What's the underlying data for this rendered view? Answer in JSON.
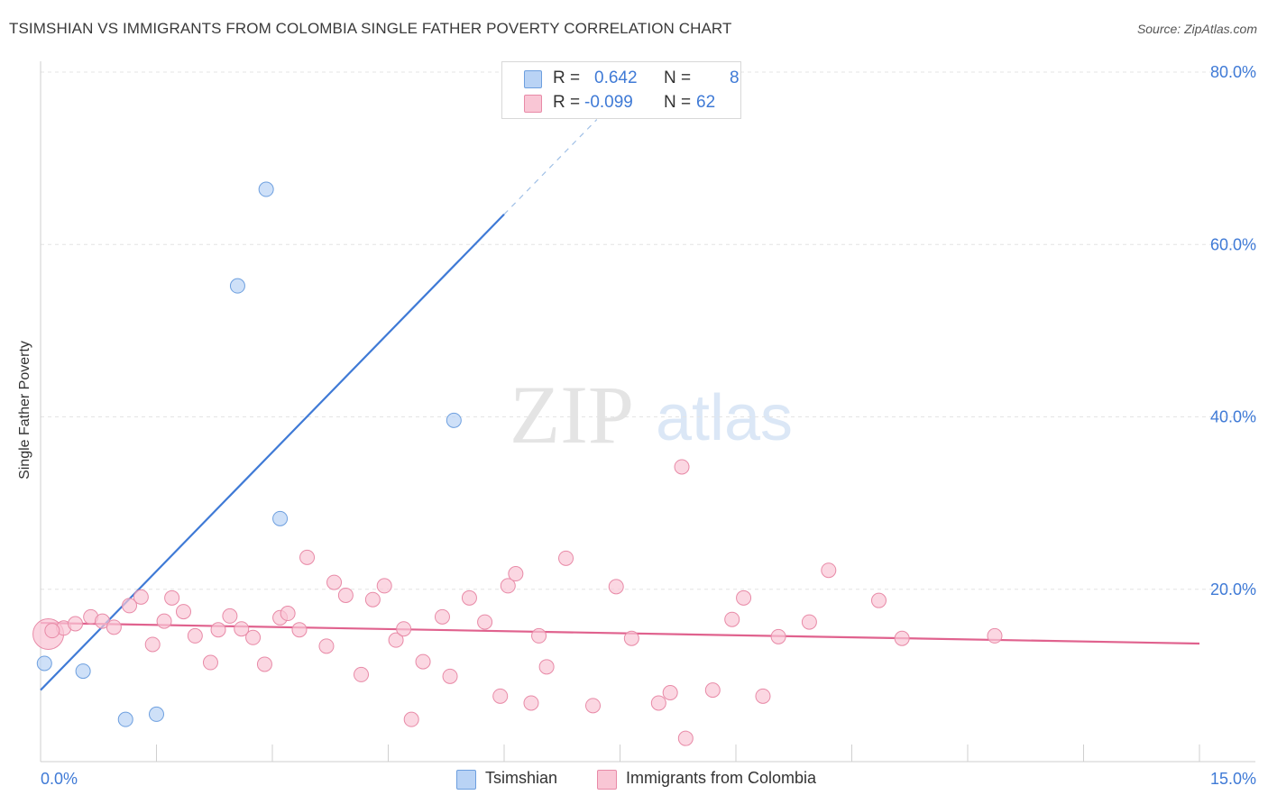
{
  "header": {
    "title": "TSIMSHIAN VS IMMIGRANTS FROM COLOMBIA SINGLE FATHER POVERTY CORRELATION CHART",
    "source": "Source: ZipAtlas.com"
  },
  "watermark": {
    "zip": "ZIP",
    "atlas": "atlas"
  },
  "legend": {
    "r_label": "R =",
    "n_label": "N =",
    "entries": [
      {
        "r": "0.642",
        "n": "8",
        "fill": "#b9d3f5",
        "stroke": "#6d9fdf"
      },
      {
        "r": "-0.099",
        "n": "62",
        "fill": "#f9c6d5",
        "stroke": "#e88aa7"
      }
    ]
  },
  "bottom_legend": [
    "Tsimshian",
    "Immigrants from Colombia"
  ],
  "chart_data": {
    "type": "scatter",
    "title": "TSIMSHIAN VS IMMIGRANTS FROM COLOMBIA SINGLE FATHER POVERTY CORRELATION CHART",
    "xlabel": "",
    "ylabel": "Single Father Poverty",
    "xlim": [
      0,
      15
    ],
    "ylim": [
      0,
      80
    ],
    "x_tick_labels": [
      "0.0%",
      "15.0%"
    ],
    "y_ticks": [
      20,
      40,
      60,
      80
    ],
    "y_tick_labels": [
      "20.0%",
      "40.0%",
      "60.0%",
      "80.0%"
    ],
    "grid": true,
    "legend_position": "top-center",
    "series": [
      {
        "name": "Tsimshian",
        "color": "#3f7ad6",
        "fill": "#b9d3f5",
        "stroke": "#6d9fdf",
        "r": 0.642,
        "n": 8,
        "points": [
          [
            0.05,
            11.4
          ],
          [
            0.55,
            10.5
          ],
          [
            1.1,
            4.9
          ],
          [
            1.5,
            5.5
          ],
          [
            2.55,
            55.2
          ],
          [
            2.92,
            66.4
          ],
          [
            3.1,
            28.2
          ],
          [
            5.35,
            39.6
          ]
        ],
        "trend": {
          "x0": 0.0,
          "y0": 8.3,
          "x1": 6.0,
          "y1": 63.5,
          "dash_x1": 7.2,
          "dash_y1": 74.5
        }
      },
      {
        "name": "Immigrants from Colombia",
        "color": "#e0628e",
        "fill": "#f9c6d5",
        "stroke": "#e88aa7",
        "r": -0.099,
        "n": 62,
        "points": [
          [
            0.1,
            14.8
          ],
          [
            0.3,
            15.5
          ],
          [
            0.45,
            16.0
          ],
          [
            0.65,
            16.8
          ],
          [
            0.8,
            16.3
          ],
          [
            0.95,
            15.6
          ],
          [
            1.15,
            18.1
          ],
          [
            1.3,
            19.1
          ],
          [
            1.45,
            13.6
          ],
          [
            1.6,
            16.3
          ],
          [
            1.7,
            19.0
          ],
          [
            1.85,
            17.4
          ],
          [
            2.0,
            14.6
          ],
          [
            2.2,
            11.5
          ],
          [
            2.3,
            15.3
          ],
          [
            2.45,
            16.9
          ],
          [
            2.6,
            15.4
          ],
          [
            2.75,
            14.4
          ],
          [
            2.9,
            11.3
          ],
          [
            3.1,
            16.7
          ],
          [
            3.2,
            17.2
          ],
          [
            3.35,
            15.3
          ],
          [
            3.45,
            23.7
          ],
          [
            3.7,
            13.4
          ],
          [
            3.8,
            20.8
          ],
          [
            3.95,
            19.3
          ],
          [
            4.15,
            10.1
          ],
          [
            4.3,
            18.8
          ],
          [
            4.45,
            20.4
          ],
          [
            4.6,
            14.1
          ],
          [
            4.7,
            15.4
          ],
          [
            4.8,
            4.9
          ],
          [
            4.95,
            11.6
          ],
          [
            5.2,
            16.8
          ],
          [
            5.3,
            9.9
          ],
          [
            5.55,
            19.0
          ],
          [
            5.75,
            16.2
          ],
          [
            5.95,
            7.6
          ],
          [
            6.05,
            20.4
          ],
          [
            6.15,
            21.8
          ],
          [
            6.35,
            6.8
          ],
          [
            6.45,
            14.6
          ],
          [
            6.55,
            11.0
          ],
          [
            6.8,
            23.6
          ],
          [
            7.15,
            6.5
          ],
          [
            7.45,
            20.3
          ],
          [
            7.65,
            14.3
          ],
          [
            8.0,
            6.8
          ],
          [
            8.15,
            8.0
          ],
          [
            8.3,
            34.2
          ],
          [
            8.35,
            2.7
          ],
          [
            8.7,
            8.3
          ],
          [
            8.95,
            16.5
          ],
          [
            9.1,
            19.0
          ],
          [
            9.35,
            7.6
          ],
          [
            9.55,
            14.5
          ],
          [
            9.95,
            16.2
          ],
          [
            10.2,
            22.2
          ],
          [
            10.85,
            18.7
          ],
          [
            11.15,
            14.3
          ],
          [
            12.35,
            14.6
          ],
          [
            0.15,
            15.2
          ]
        ],
        "trend": {
          "x0": 0.0,
          "y0": 16.1,
          "x1": 15.0,
          "y1": 13.7
        }
      }
    ]
  }
}
